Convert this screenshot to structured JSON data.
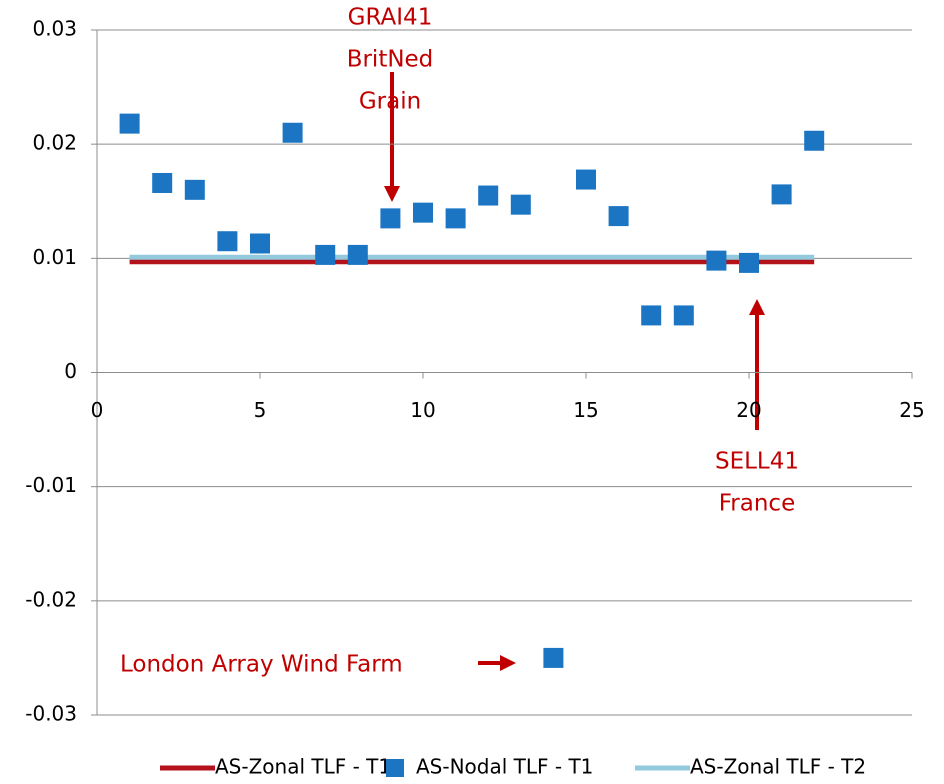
{
  "chart_data": {
    "type": "scatter",
    "x": [
      1,
      2,
      3,
      4,
      5,
      6,
      7,
      8,
      9,
      10,
      11,
      12,
      13,
      14,
      15,
      16,
      17,
      18,
      19,
      20,
      21,
      22
    ],
    "series": [
      {
        "name": "AS-Zonal TLF - T1",
        "type": "line",
        "color": "#b3121b",
        "values": [
          0.0097,
          0.0097,
          0.0097,
          0.0097,
          0.0097,
          0.0097,
          0.0097,
          0.0097,
          0.0097,
          0.0097,
          0.0097,
          0.0097,
          0.0097,
          0.0097,
          0.0097,
          0.0097,
          0.0097,
          0.0097,
          0.0097,
          0.0097,
          0.0097,
          0.0097
        ]
      },
      {
        "name": "AS-Nodal TLF - T1",
        "type": "scatter",
        "color": "#1b75c3",
        "values": [
          0.0218,
          0.0166,
          0.016,
          0.0115,
          0.0113,
          0.021,
          0.0103,
          0.0103,
          0.0135,
          0.014,
          0.0135,
          0.0155,
          0.0147,
          -0.025,
          0.0169,
          0.0137,
          0.005,
          0.005,
          0.0098,
          0.0096,
          0.0156,
          0.0203
        ]
      },
      {
        "name": "AS-Zonal TLF - T2",
        "type": "line",
        "color": "#92c9dc",
        "values": [
          0.0101,
          0.0101,
          0.0101,
          0.0101,
          0.0101,
          0.0101,
          0.0101,
          0.0101,
          0.0101,
          0.0101,
          0.0101,
          0.0101,
          0.0101,
          0.0101,
          0.0101,
          0.0101,
          0.0101,
          0.0101,
          0.0101,
          0.0101,
          0.0101,
          0.0101
        ]
      }
    ],
    "xlim": [
      0,
      25
    ],
    "xticks": [
      0,
      5,
      10,
      15,
      20,
      25
    ],
    "ylim": [
      -0.03,
      0.03
    ],
    "yticks": [
      0.03,
      0.02,
      0.01,
      0,
      -0.01,
      -0.02,
      -0.03
    ],
    "grid": true,
    "legend": "bottom",
    "annotations": [
      {
        "lines": [
          "GRAI41",
          "BritNed",
          "Grain"
        ],
        "color": "#c00000"
      },
      {
        "lines": [
          "SELL41",
          "France"
        ],
        "color": "#c00000"
      },
      {
        "lines": [
          "London Array Wind Farm"
        ],
        "color": "#c00000"
      }
    ]
  }
}
